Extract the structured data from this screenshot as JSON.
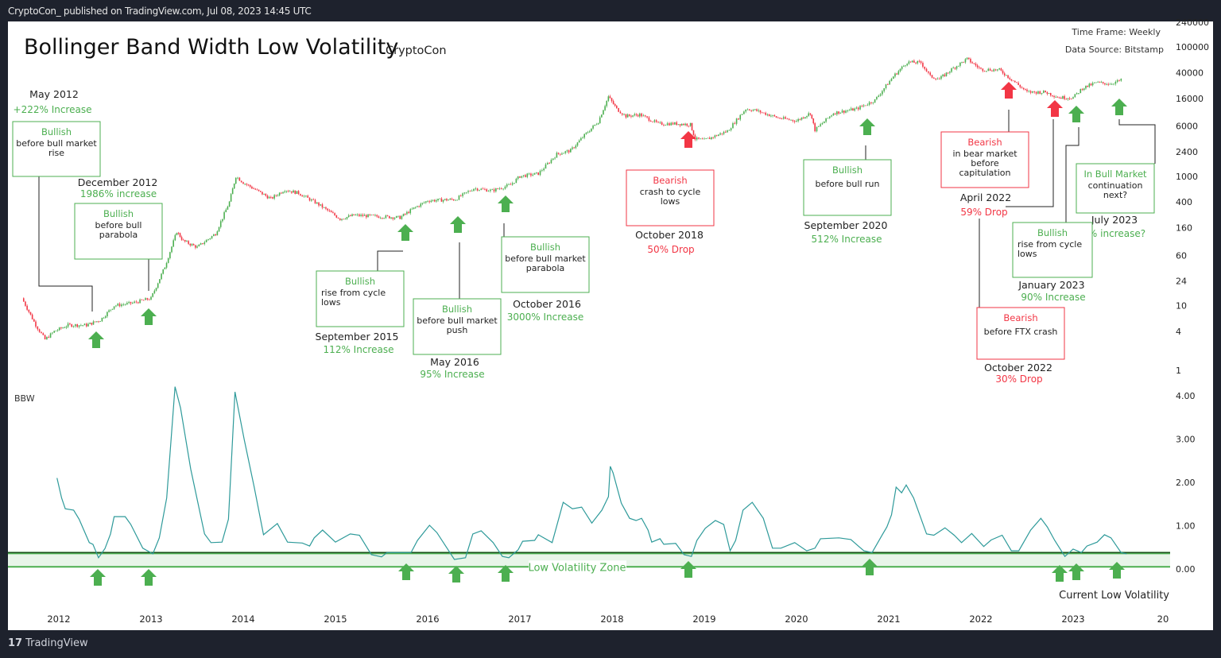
{
  "header": {
    "published": "CryptoCon_ published on TradingView.com, Jul 08, 2023 14:45 UTC"
  },
  "footer": {
    "brand": "TradingView",
    "logo_icon": "tradingview-logo-icon"
  },
  "chart_title": "Bollinger Band Width Low Volatility",
  "chart_author": "CryptoCon",
  "info": {
    "time_frame": "Time Frame: Weekly",
    "data_source": "Data Source: Bitstamp"
  },
  "colors": {
    "bull": "#4caf50",
    "bear": "#f23645",
    "bbw_line": "#2e9a9a",
    "zone_fill": "#e8f5e9",
    "zone_line": "#4caf50",
    "threshold_line": "#1b3d1b"
  },
  "chart_data": [
    {
      "type": "candlestick",
      "title": "Bollinger Band Width Low Volatility",
      "y_scale": "log",
      "y_ticks": [
        "240000",
        "100000",
        "40000",
        "16000",
        "6000",
        "2400",
        "1000",
        "400",
        "160",
        "60",
        "24",
        "10",
        "4",
        "1"
      ],
      "x_ticks": [
        "2012",
        "2013",
        "2014",
        "2015",
        "2016",
        "2017",
        "2018",
        "2019",
        "2020",
        "2021",
        "2022",
        "2023",
        "20"
      ],
      "grid": false,
      "close_series": [
        [
          2011.6,
          13
        ],
        [
          2011.75,
          5
        ],
        [
          2011.85,
          3
        ],
        [
          2011.95,
          4
        ],
        [
          2012.1,
          5
        ],
        [
          2012.3,
          5
        ],
        [
          2012.45,
          6
        ],
        [
          2012.6,
          10
        ],
        [
          2012.8,
          11
        ],
        [
          2013.0,
          13
        ],
        [
          2013.15,
          40
        ],
        [
          2013.28,
          140
        ],
        [
          2013.35,
          100
        ],
        [
          2013.5,
          80
        ],
        [
          2013.7,
          130
        ],
        [
          2013.85,
          400
        ],
        [
          2013.92,
          1000
        ],
        [
          2014.0,
          800
        ],
        [
          2014.15,
          600
        ],
        [
          2014.3,
          450
        ],
        [
          2014.45,
          620
        ],
        [
          2014.6,
          550
        ],
        [
          2014.8,
          380
        ],
        [
          2015.05,
          220
        ],
        [
          2015.2,
          250
        ],
        [
          2015.45,
          240
        ],
        [
          2015.7,
          230
        ],
        [
          2015.85,
          320
        ],
        [
          2016.0,
          420
        ],
        [
          2016.3,
          440
        ],
        [
          2016.5,
          650
        ],
        [
          2016.7,
          600
        ],
        [
          2016.9,
          740
        ],
        [
          2017.0,
          1000
        ],
        [
          2017.2,
          1100
        ],
        [
          2017.4,
          2200
        ],
        [
          2017.55,
          2500
        ],
        [
          2017.7,
          4300
        ],
        [
          2017.85,
          7000
        ],
        [
          2017.96,
          17000
        ],
        [
          2018.05,
          11000
        ],
        [
          2018.15,
          8500
        ],
        [
          2018.3,
          9000
        ],
        [
          2018.5,
          6500
        ],
        [
          2018.7,
          6500
        ],
        [
          2018.85,
          6300
        ],
        [
          2018.9,
          3800
        ],
        [
          2019.0,
          3600
        ],
        [
          2019.25,
          5000
        ],
        [
          2019.45,
          11000
        ],
        [
          2019.55,
          10500
        ],
        [
          2019.8,
          8000
        ],
        [
          2020.0,
          7200
        ],
        [
          2020.15,
          9500
        ],
        [
          2020.2,
          5200
        ],
        [
          2020.4,
          9500
        ],
        [
          2020.65,
          11000
        ],
        [
          2020.85,
          15000
        ],
        [
          2020.95,
          23000
        ],
        [
          2021.05,
          35000
        ],
        [
          2021.2,
          58000
        ],
        [
          2021.35,
          57000
        ],
        [
          2021.45,
          35000
        ],
        [
          2021.55,
          32000
        ],
        [
          2021.7,
          47000
        ],
        [
          2021.85,
          65000
        ],
        [
          2022.0,
          45000
        ],
        [
          2022.2,
          44000
        ],
        [
          2022.35,
          30000
        ],
        [
          2022.5,
          20000
        ],
        [
          2022.7,
          20000
        ],
        [
          2022.85,
          16500
        ],
        [
          2023.0,
          16500
        ],
        [
          2023.1,
          23000
        ],
        [
          2023.25,
          28000
        ],
        [
          2023.4,
          27000
        ],
        [
          2023.52,
          30500
        ]
      ]
    },
    {
      "type": "line",
      "title": "BBW",
      "ylim": [
        0,
        4
      ],
      "y_ticks": [
        "4.00",
        "3.00",
        "2.00",
        "1.00",
        "0.00"
      ],
      "low_volatility_zone": [
        0.05,
        0.37
      ],
      "zone_label": "Low Volatility Zone",
      "current_label": "Current Low Volatility",
      "series": [
        [
          2011.98,
          2.1
        ],
        [
          2012.03,
          1.64
        ],
        [
          2012.07,
          1.39
        ],
        [
          2012.16,
          1.36
        ],
        [
          2012.22,
          1.15
        ],
        [
          2012.33,
          0.61
        ],
        [
          2012.37,
          0.57
        ],
        [
          2012.43,
          0.26
        ],
        [
          2012.5,
          0.47
        ],
        [
          2012.56,
          0.81
        ],
        [
          2012.6,
          1.21
        ],
        [
          2012.72,
          1.21
        ],
        [
          2012.78,
          1.03
        ],
        [
          2012.91,
          0.48
        ],
        [
          2013.02,
          0.35
        ],
        [
          2013.09,
          0.72
        ],
        [
          2013.17,
          1.64
        ],
        [
          2013.26,
          4.21
        ],
        [
          2013.32,
          3.72
        ],
        [
          2013.43,
          2.31
        ],
        [
          2013.58,
          0.81
        ],
        [
          2013.65,
          0.61
        ],
        [
          2013.77,
          0.62
        ],
        [
          2013.84,
          1.15
        ],
        [
          2013.91,
          4.09
        ],
        [
          2014.01,
          2.99
        ],
        [
          2014.12,
          1.88
        ],
        [
          2014.22,
          0.79
        ],
        [
          2014.37,
          1.05
        ],
        [
          2014.48,
          0.62
        ],
        [
          2014.64,
          0.6
        ],
        [
          2014.72,
          0.53
        ],
        [
          2014.77,
          0.72
        ],
        [
          2014.86,
          0.9
        ],
        [
          2015.0,
          0.62
        ],
        [
          2015.16,
          0.81
        ],
        [
          2015.26,
          0.78
        ],
        [
          2015.39,
          0.33
        ],
        [
          2015.5,
          0.28
        ],
        [
          2015.56,
          0.38
        ],
        [
          2015.82,
          0.38
        ],
        [
          2015.89,
          0.66
        ],
        [
          2016.02,
          1.01
        ],
        [
          2016.1,
          0.84
        ],
        [
          2016.29,
          0.22
        ],
        [
          2016.41,
          0.26
        ],
        [
          2016.49,
          0.81
        ],
        [
          2016.58,
          0.88
        ],
        [
          2016.71,
          0.61
        ],
        [
          2016.81,
          0.29
        ],
        [
          2016.88,
          0.26
        ],
        [
          2016.98,
          0.44
        ],
        [
          2017.03,
          0.64
        ],
        [
          2017.16,
          0.66
        ],
        [
          2017.2,
          0.79
        ],
        [
          2017.35,
          0.61
        ],
        [
          2017.47,
          1.54
        ],
        [
          2017.57,
          1.39
        ],
        [
          2017.67,
          1.43
        ],
        [
          2017.78,
          1.06
        ],
        [
          2017.89,
          1.36
        ],
        [
          2017.96,
          1.67
        ],
        [
          2017.98,
          2.37
        ],
        [
          2018.01,
          2.22
        ],
        [
          2018.1,
          1.52
        ],
        [
          2018.19,
          1.17
        ],
        [
          2018.26,
          1.12
        ],
        [
          2018.32,
          1.17
        ],
        [
          2018.39,
          0.9
        ],
        [
          2018.43,
          0.62
        ],
        [
          2018.52,
          0.7
        ],
        [
          2018.56,
          0.57
        ],
        [
          2018.69,
          0.59
        ],
        [
          2018.78,
          0.33
        ],
        [
          2018.86,
          0.29
        ],
        [
          2018.92,
          0.66
        ],
        [
          2019.01,
          0.94
        ],
        [
          2019.12,
          1.12
        ],
        [
          2019.21,
          1.03
        ],
        [
          2019.28,
          0.42
        ],
        [
          2019.34,
          0.66
        ],
        [
          2019.42,
          1.36
        ],
        [
          2019.52,
          1.54
        ],
        [
          2019.64,
          1.17
        ],
        [
          2019.74,
          0.48
        ],
        [
          2019.83,
          0.48
        ],
        [
          2019.98,
          0.61
        ],
        [
          2020.11,
          0.42
        ],
        [
          2020.2,
          0.48
        ],
        [
          2020.26,
          0.7
        ],
        [
          2020.46,
          0.72
        ],
        [
          2020.59,
          0.68
        ],
        [
          2020.67,
          0.53
        ],
        [
          2020.73,
          0.42
        ],
        [
          2020.82,
          0.38
        ],
        [
          2020.93,
          0.79
        ],
        [
          2020.98,
          0.97
        ],
        [
          2021.03,
          1.25
        ],
        [
          2021.08,
          1.89
        ],
        [
          2021.14,
          1.76
        ],
        [
          2021.19,
          1.94
        ],
        [
          2021.27,
          1.64
        ],
        [
          2021.41,
          0.81
        ],
        [
          2021.49,
          0.78
        ],
        [
          2021.61,
          0.95
        ],
        [
          2021.71,
          0.78
        ],
        [
          2021.79,
          0.61
        ],
        [
          2021.9,
          0.82
        ],
        [
          2022.03,
          0.52
        ],
        [
          2022.11,
          0.67
        ],
        [
          2022.23,
          0.78
        ],
        [
          2022.33,
          0.42
        ],
        [
          2022.41,
          0.42
        ],
        [
          2022.54,
          0.9
        ],
        [
          2022.65,
          1.17
        ],
        [
          2022.72,
          0.97
        ],
        [
          2022.8,
          0.66
        ],
        [
          2022.91,
          0.29
        ],
        [
          2023.0,
          0.46
        ],
        [
          2023.09,
          0.38
        ],
        [
          2023.15,
          0.53
        ],
        [
          2023.26,
          0.62
        ],
        [
          2023.34,
          0.79
        ],
        [
          2023.41,
          0.72
        ],
        [
          2023.52,
          0.38
        ],
        [
          2023.58,
          0.35
        ]
      ]
    }
  ],
  "arrow_icon": "arrow-up-icon",
  "annotations": [
    {
      "kind": "bull",
      "title": "Bullish",
      "body": [
        "before bull market",
        "rise"
      ],
      "date": "May 2012",
      "change": "+222% Increase"
    },
    {
      "kind": "bull",
      "title": "Bullish",
      "body": [
        "before bull",
        "parabola"
      ],
      "date": "December 2012",
      "change": "1986% increase"
    },
    {
      "kind": "bull",
      "title": "Bullish",
      "body": [
        "rise from cycle",
        "lows"
      ],
      "date": "September 2015",
      "change": "112% Increase"
    },
    {
      "kind": "bull",
      "title": "Bullish",
      "body": [
        "before bull market",
        "push"
      ],
      "date": "May 2016",
      "change": "95% Increase"
    },
    {
      "kind": "bull",
      "title": "Bullish",
      "body": [
        "before bull market",
        "parabola"
      ],
      "date": "October 2016",
      "change": "3000% Increase"
    },
    {
      "kind": "bear",
      "title": "Bearish",
      "body": [
        "crash to cycle",
        "lows"
      ],
      "date": "October 2018",
      "change": "50% Drop"
    },
    {
      "kind": "bull",
      "title": "Bullish",
      "body": [
        "before bull run"
      ],
      "date": "September 2020",
      "change": "512% Increase"
    },
    {
      "kind": "bear",
      "title": "Bearish",
      "body": [
        "in bear market",
        "before",
        "capitulation"
      ],
      "date": "April 2022",
      "change": "59% Drop"
    },
    {
      "kind": "bull",
      "title": "In Bull Market",
      "body": [
        "continuation",
        "next?"
      ],
      "date": "July 2023",
      "change": "% increase?"
    },
    {
      "kind": "bull",
      "title": "Bullish",
      "body": [
        "rise from cycle",
        "lows"
      ],
      "date": "January 2023",
      "change": "90% Increase"
    },
    {
      "kind": "bear",
      "title": "Bearish",
      "body": [
        "before FTX crash"
      ],
      "date": "October 2022",
      "change": "30% Drop"
    }
  ]
}
